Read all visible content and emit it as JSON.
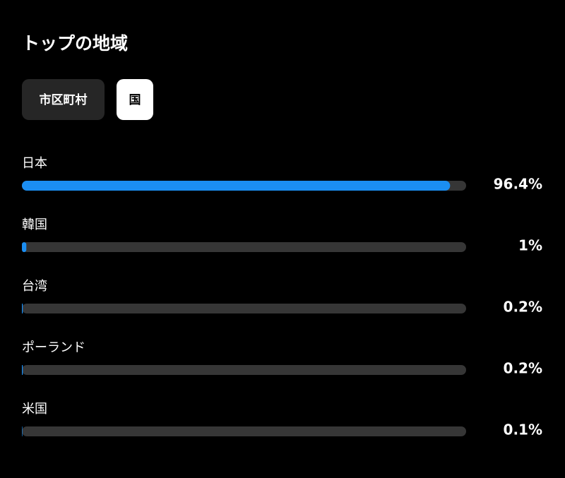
{
  "title": "トップの地域",
  "tabs": [
    "市区町村",
    "国"
  ],
  "chart_data": {
    "type": "bar",
    "categories": [
      "日本",
      "韓国",
      "台湾",
      "ポーランド",
      "米国"
    ],
    "values": [
      96.4,
      1,
      0.2,
      0.2,
      0.1
    ],
    "value_labels": [
      "96.4%",
      "1%",
      "0.2%",
      "0.2%",
      "0.1%"
    ],
    "xlim": [
      0,
      100
    ],
    "color": "#1b8ef2"
  }
}
